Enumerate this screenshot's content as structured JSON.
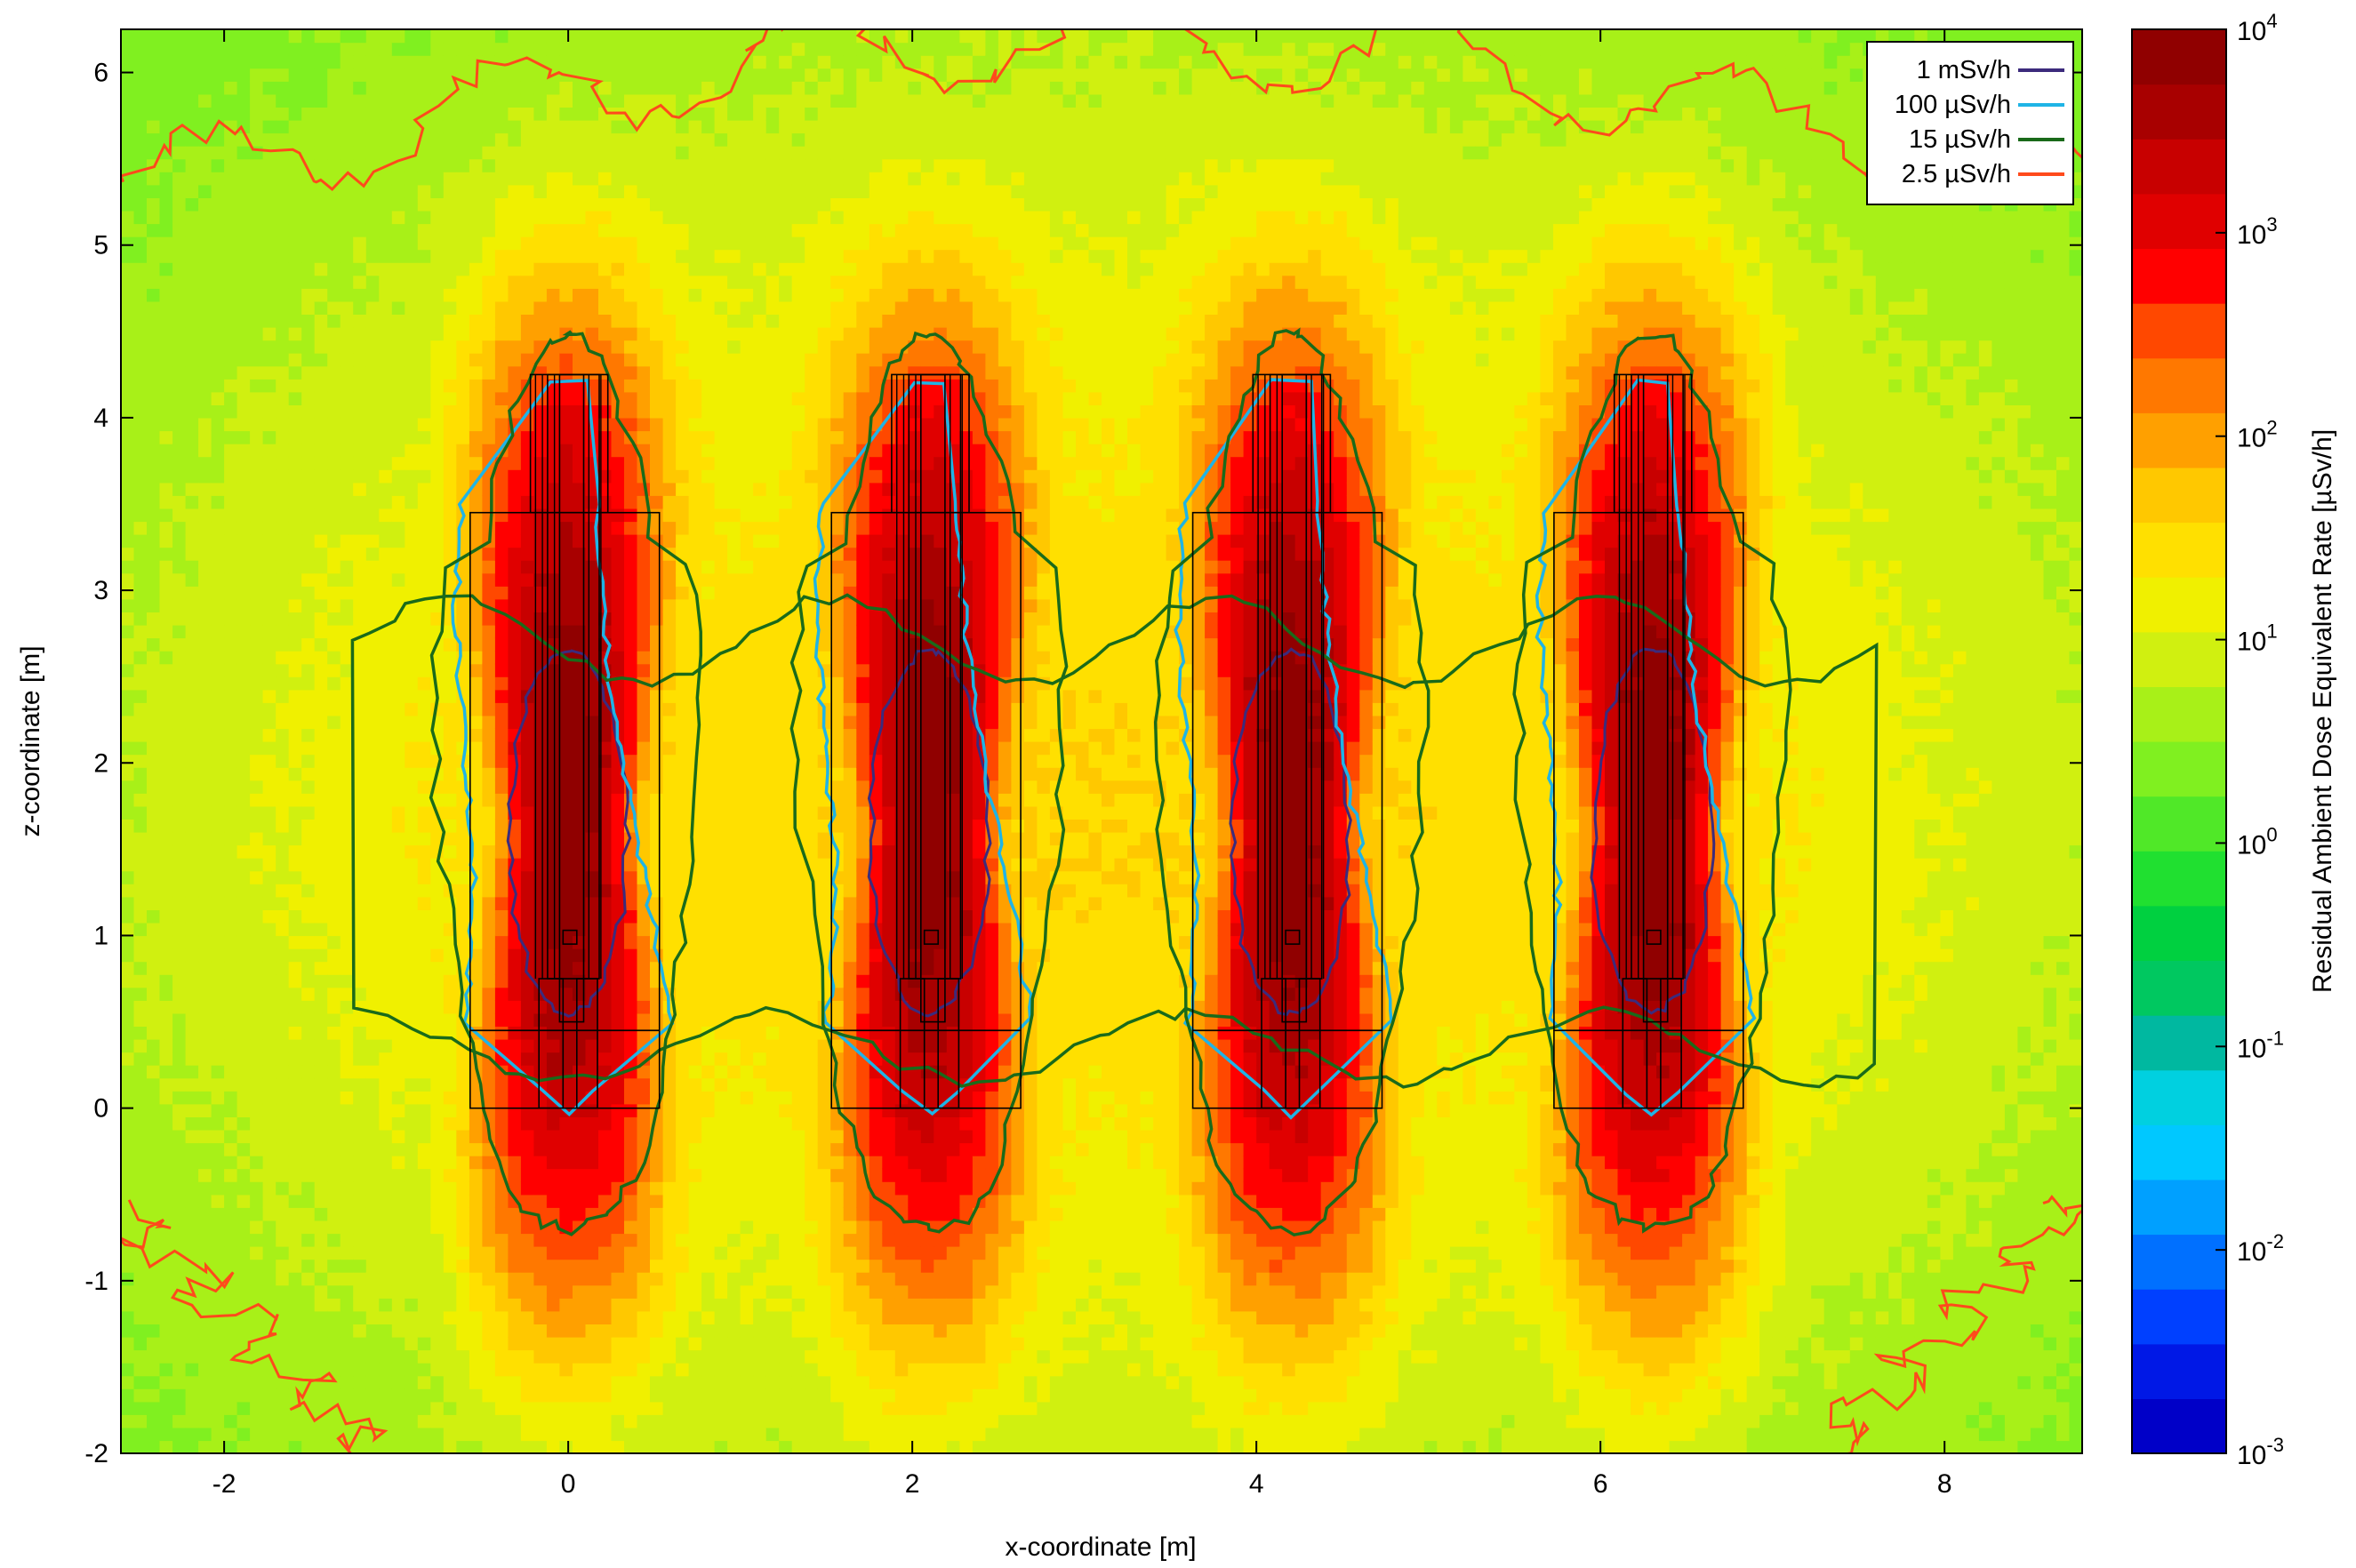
{
  "chart_data": {
    "type": "heatmap",
    "title": "",
    "xlabel": "x-coordinate [m]",
    "ylabel": "z-coordinate [m]",
    "xlim": [
      -2.6,
      8.8
    ],
    "ylim": [
      -2.0,
      6.25
    ],
    "x_ticks": [
      -2,
      0,
      2,
      4,
      6,
      8
    ],
    "y_ticks": [
      -2,
      -1,
      0,
      1,
      2,
      3,
      4,
      5,
      6
    ],
    "x_tick_labels": [
      "-2",
      "0",
      "2",
      "4",
      "6",
      "8"
    ],
    "y_tick_labels": [
      "-2",
      "-1",
      "0",
      "1",
      "2",
      "3",
      "4",
      "5",
      "6"
    ],
    "grid": false,
    "legend_position": "top-right",
    "colorbar": {
      "label": "Residual Ambient Dose Equivalent Rate [µSv/h]",
      "scale": "log",
      "range": [
        0.001,
        10000
      ],
      "tick_bases": [
        "10",
        "10",
        "10",
        "10",
        "10",
        "10",
        "10",
        "10"
      ],
      "tick_exponents": [
        "-3",
        "-2",
        "-1",
        "0",
        "1",
        "2",
        "3",
        "4"
      ],
      "colors": [
        "#0000c8",
        "#0018e6",
        "#0040ff",
        "#0070ff",
        "#00a0ff",
        "#00c8ff",
        "#00d0e0",
        "#00b8a0",
        "#00c860",
        "#00d040",
        "#20e030",
        "#50e828",
        "#80f020",
        "#a8f018",
        "#d0f010",
        "#f0f000",
        "#ffe000",
        "#ffc800",
        "#ffa000",
        "#ff7800",
        "#ff4800",
        "#ff0000",
        "#e00000",
        "#c80000",
        "#a80000",
        "#900000"
      ]
    },
    "source_positions_x": [
      0.0,
      2.1,
      4.2,
      6.3
    ],
    "contours": [
      {
        "name": "1 mSv/h",
        "level": 1000,
        "color": "#3c2b7c"
      },
      {
        "name": "100 µSv/h",
        "level": 100,
        "color": "#1fb4e6"
      },
      {
        "name": "15 µSv/h",
        "level": 15,
        "color": "#1a6a1a"
      },
      {
        "name": "2.5 µSv/h",
        "level": 2.5,
        "color": "#ff4a1c"
      }
    ]
  }
}
